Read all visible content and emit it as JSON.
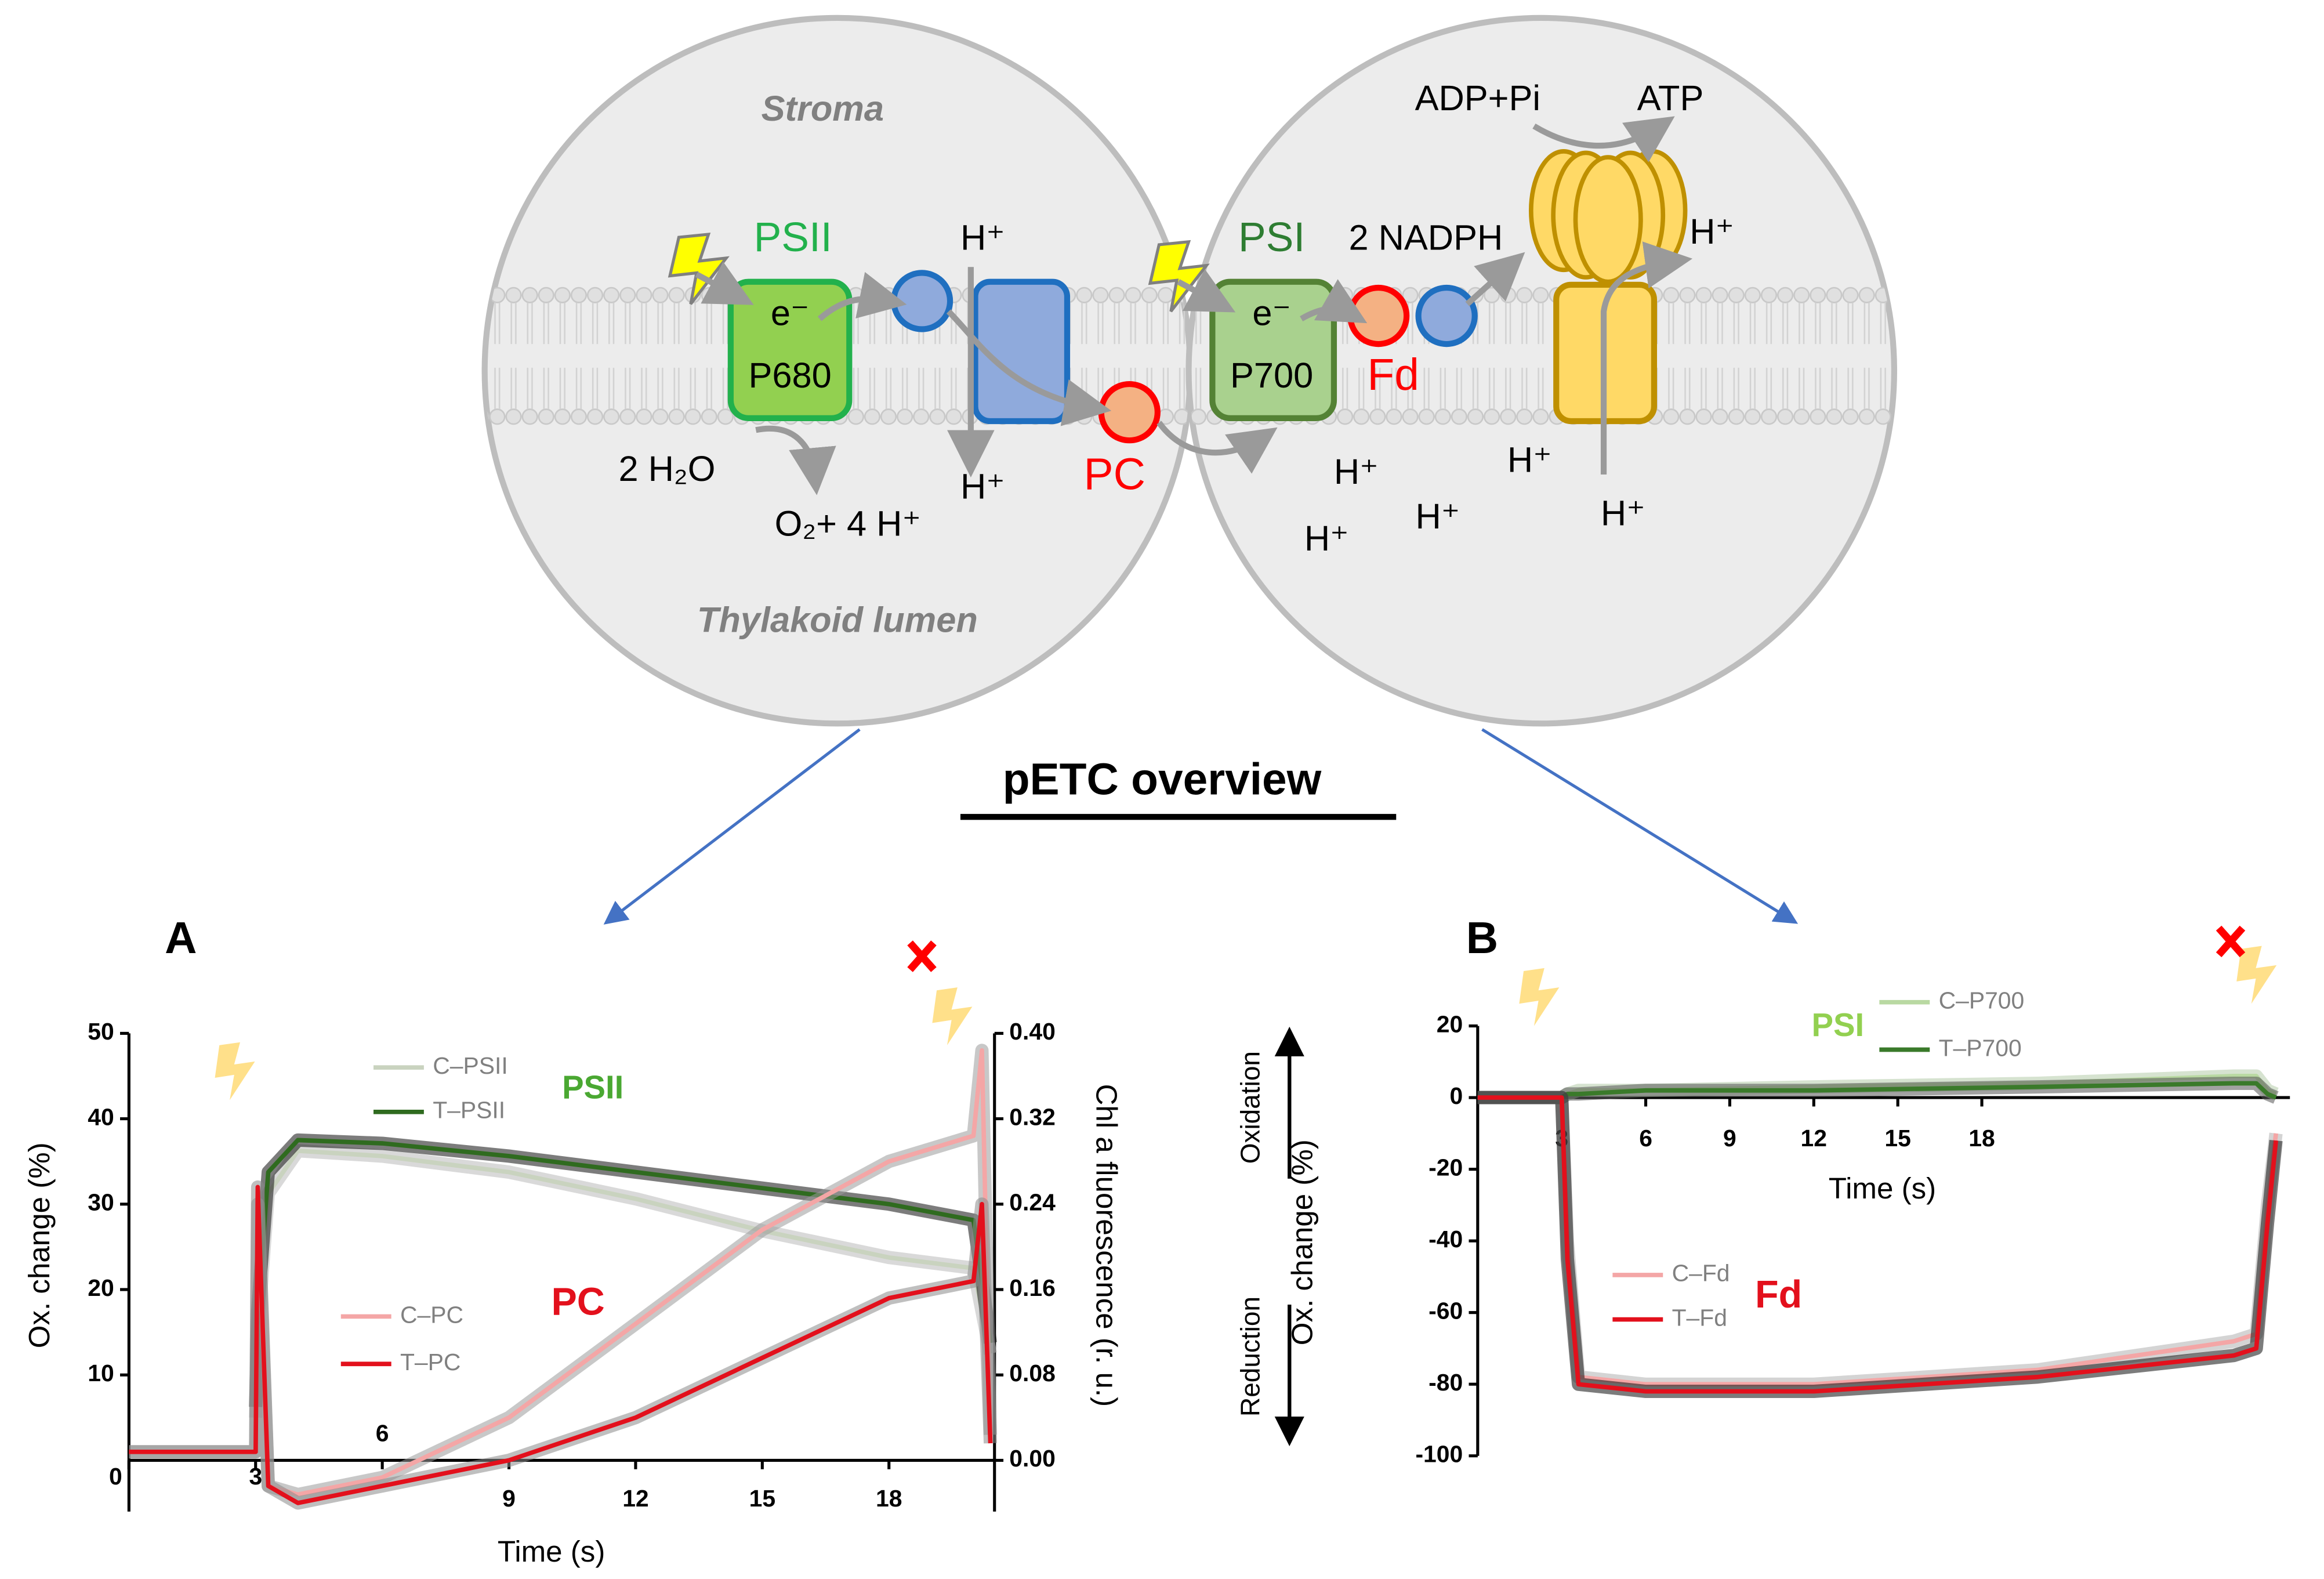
{
  "diagram": {
    "stroma": "Stroma",
    "lumen": "Thylakoid lumen",
    "psii": "PSII",
    "psii_e": "e⁻",
    "p680": "P680",
    "water": "2 H₂O",
    "oxygen": "O₂+ 4 H⁺",
    "pc": "PC",
    "psi": "PSI",
    "psi_e": "e⁻",
    "p700": "P700",
    "nadph": "2 NADPH",
    "fd": "Fd",
    "adp": "ADP+Pi",
    "atp": "ATP",
    "protons": [
      "H⁺",
      "H⁺",
      "H⁺",
      "H⁺",
      "H⁺",
      "H⁺",
      "H⁺",
      "H⁺"
    ],
    "title": "pETC overview"
  },
  "chart_data": [
    {
      "type": "line",
      "panel_label": "A",
      "xlabel": "Time (s)",
      "ylabel": "Ox. change (%)",
      "y2label": "Chl a fluorescence (r. u.)",
      "annotations": [
        "PSII",
        "PC"
      ],
      "xlim": [
        0,
        20.5
      ],
      "xticks": [
        0,
        3,
        6,
        9,
        12,
        15,
        18
      ],
      "ylim": [
        -6,
        50
      ],
      "yticks": [
        10,
        20,
        30,
        40,
        50
      ],
      "y2lim": [
        -0.048,
        0.4
      ],
      "y2ticks": [
        {
          "value": 0,
          "label": "0.00"
        },
        {
          "value": 0.08,
          "label": "0.08"
        },
        {
          "value": 0.16,
          "label": "0.16"
        },
        {
          "value": 0.24,
          "label": "0.24"
        },
        {
          "value": 0.32,
          "label": "0.32"
        },
        {
          "value": 0.4,
          "label": "0.40"
        }
      ],
      "x": [
        0,
        3,
        3.05,
        3.3,
        4,
        6,
        9,
        12,
        15,
        18,
        20,
        20.2,
        20.4
      ],
      "series": [
        {
          "name": "C–PSII",
          "color": "#c9d3bf",
          "axis": "y2",
          "values": [
            null,
            0.04,
            0.12,
            0.25,
            0.29,
            0.285,
            0.27,
            0.245,
            0.215,
            0.19,
            0.18,
            0.14,
            0.1
          ]
        },
        {
          "name": "T–PSII",
          "color": "#2f6b1f",
          "axis": "y2",
          "values": [
            null,
            0.05,
            0.14,
            0.27,
            0.3,
            0.297,
            0.285,
            0.27,
            0.255,
            0.24,
            0.225,
            0.17,
            0.11
          ]
        },
        {
          "name": "C–PC",
          "color": "#f4a6a6",
          "values": [
            1,
            1,
            30,
            -3,
            -4,
            -2,
            5,
            16,
            27,
            35,
            38,
            48,
            3
          ]
        },
        {
          "name": "T–PC",
          "color": "#e3101c",
          "values": [
            1,
            1,
            32,
            -3,
            -5,
            -3,
            0,
            5,
            12,
            19,
            21,
            30,
            2
          ]
        }
      ]
    },
    {
      "type": "line",
      "panel_label": "B",
      "xlabel": "Time (s)",
      "ylabel": "Ox. change (%)",
      "annotations": [
        "PSI",
        "Fd",
        "Oxidation",
        "Reduction"
      ],
      "xlim": [
        0,
        29
      ],
      "xticks": [
        3,
        6,
        9,
        12,
        15,
        18
      ],
      "ylim": [
        -100,
        20
      ],
      "yticks": [
        20,
        0,
        -20,
        -40,
        -60,
        -80,
        -100
      ],
      "x": [
        0,
        3,
        3.2,
        3.6,
        6,
        12,
        20,
        27,
        27.8,
        28.2,
        28.5
      ],
      "series": [
        {
          "name": "C–P700",
          "color": "#b9d9a2",
          "values": [
            0,
            0,
            1,
            2,
            2,
            3,
            4,
            6,
            6,
            2,
            1
          ]
        },
        {
          "name": "T–P700",
          "color": "#3a7a2a",
          "values": [
            0,
            0,
            1,
            1,
            2,
            2,
            3,
            4,
            4,
            1,
            0
          ]
        },
        {
          "name": "C–Fd",
          "color": "#f4a6a6",
          "values": [
            0,
            0,
            -40,
            -78,
            -80,
            -80,
            -76,
            -68,
            -66,
            -30,
            -10
          ]
        },
        {
          "name": "T–Fd",
          "color": "#e3101c",
          "values": [
            0,
            0,
            -45,
            -80,
            -82,
            -82,
            -78,
            -72,
            -70,
            -35,
            -12
          ]
        }
      ]
    }
  ]
}
